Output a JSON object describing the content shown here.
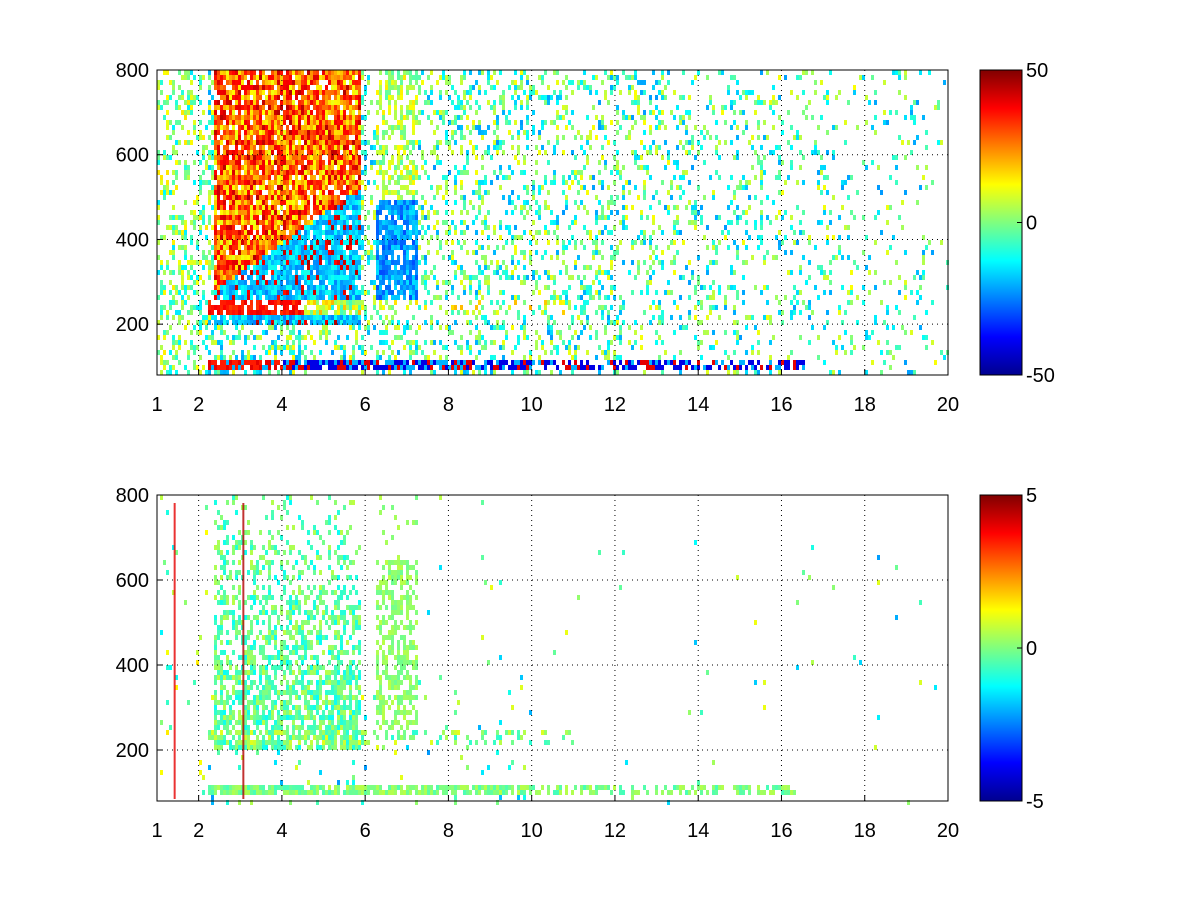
{
  "chart_data": [
    {
      "type": "heatmap",
      "title": "",
      "xlabel": "",
      "ylabel": "",
      "x_ticks": [
        "1",
        "2",
        "4",
        "6",
        "8",
        "10",
        "12",
        "14",
        "16",
        "18",
        "20"
      ],
      "x_tick_values": [
        1,
        2,
        4,
        6,
        8,
        10,
        12,
        14,
        16,
        18,
        20
      ],
      "y_ticks": [
        "200",
        "400",
        "600",
        "800"
      ],
      "y_tick_values": [
        200,
        400,
        600,
        800
      ],
      "xlim": [
        1,
        20
      ],
      "ylim": [
        80,
        800
      ],
      "grid": true,
      "grid_style": "dotted",
      "colormap": "jet",
      "colorbar": {
        "min": -50,
        "max": 50,
        "tick_labels": [
          "50",
          "0",
          "-50"
        ],
        "tick_values": [
          50,
          0,
          -50
        ]
      },
      "features": [
        {
          "name": "low band",
          "y": 115,
          "x_range": [
            2.2,
            16.5
          ]
        },
        {
          "name": "mid band",
          "y": 240,
          "x_range": [
            2.2,
            11
          ]
        },
        {
          "name": "diffuse region",
          "x_range": [
            2.3,
            7.2
          ],
          "y_range": [
            220,
            800
          ]
        }
      ]
    },
    {
      "type": "heatmap",
      "title": "",
      "xlabel": "",
      "ylabel": "",
      "x_ticks": [
        "1",
        "2",
        "4",
        "6",
        "8",
        "10",
        "12",
        "14",
        "16",
        "18",
        "20"
      ],
      "x_tick_values": [
        1,
        2,
        4,
        6,
        8,
        10,
        12,
        14,
        16,
        18,
        20
      ],
      "y_ticks": [
        "200",
        "400",
        "600",
        "800"
      ],
      "y_tick_values": [
        200,
        400,
        600,
        800
      ],
      "xlim": [
        1,
        20
      ],
      "ylim": [
        80,
        800
      ],
      "grid": true,
      "grid_style": "dotted",
      "colormap": "jet",
      "colorbar": {
        "min": -5,
        "max": 5,
        "tick_labels": [
          "5",
          "0",
          "-5"
        ],
        "tick_values": [
          5,
          0,
          -5
        ]
      },
      "features": [
        {
          "name": "low band",
          "y": 115,
          "x_range": [
            2.2,
            16.3
          ]
        },
        {
          "name": "diffuse region",
          "x_range": [
            2.3,
            7.2
          ],
          "y_range": [
            220,
            760
          ]
        }
      ]
    }
  ]
}
